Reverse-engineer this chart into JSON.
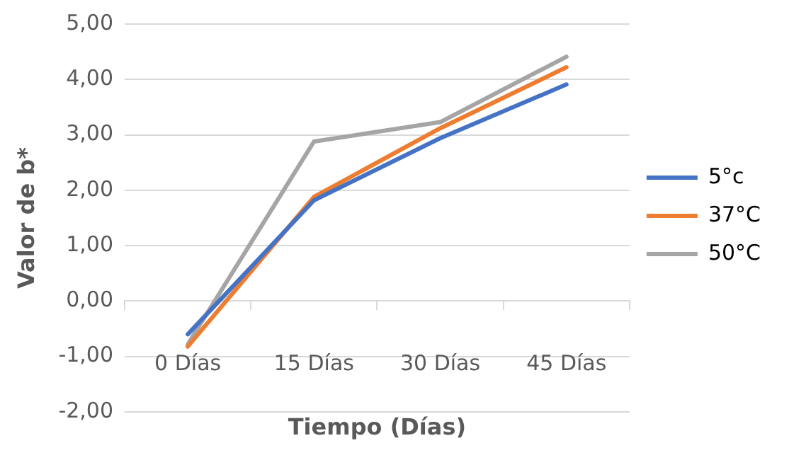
{
  "chart_data": {
    "type": "line",
    "xlabel": "Tiempo (Días)",
    "ylabel": "Valor de b*",
    "categories": [
      "0 Días",
      "15 Días",
      "30 Días",
      "45 Días"
    ],
    "series": [
      {
        "name": "5°c",
        "color": "#4472c4",
        "values": [
          -0.6,
          1.82,
          2.94,
          3.91
        ]
      },
      {
        "name": "37°C",
        "color": "#ed7d31",
        "values": [
          -0.82,
          1.88,
          3.12,
          4.22
        ]
      },
      {
        "name": "50°C",
        "color": "#a5a5a5",
        "values": [
          -0.78,
          2.88,
          3.23,
          4.41
        ]
      }
    ],
    "ylim": [
      -2,
      5
    ],
    "yticks": [
      {
        "value": -2,
        "label": "-2,00"
      },
      {
        "value": -1,
        "label": "-1,00"
      },
      {
        "value": 0,
        "label": "0,00"
      },
      {
        "value": 1,
        "label": "1,00"
      },
      {
        "value": 2,
        "label": "2,00"
      },
      {
        "value": 3,
        "label": "3,00"
      },
      {
        "value": 4,
        "label": "4,00"
      },
      {
        "value": 5,
        "label": "5,00"
      }
    ],
    "grid": "y",
    "legend": "right",
    "marker": "none",
    "line_style": "solid"
  }
}
